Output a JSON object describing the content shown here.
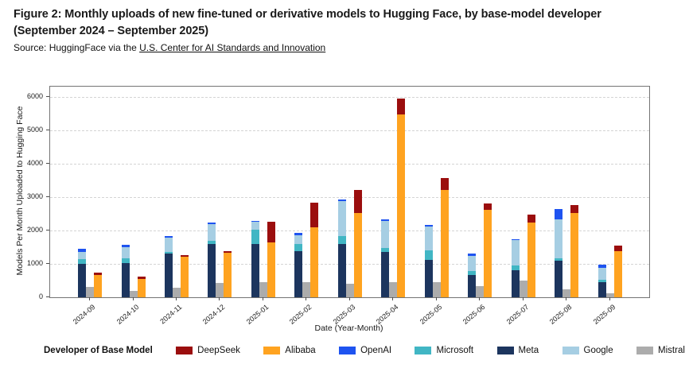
{
  "header": {
    "title_line1": "Figure 2: Monthly uploads of new fine-tuned or derivative models to Hugging Face, by base-model developer",
    "title_line2": "(September 2024 – September 2025)"
  },
  "source": {
    "prefix": "Source: HuggingFace via the ",
    "link_text": "U.S. Center for AI Standards and Innovation"
  },
  "chart_data": {
    "type": "bar",
    "title": "",
    "xlabel": "Date (Year-Month)",
    "ylabel": "Models Per Month Uploaded to Hugging Face",
    "ylim": [
      0,
      6300
    ],
    "yticks": [
      0,
      1000,
      2000,
      3000,
      4000,
      5000,
      6000
    ],
    "grid": "dashed-horizontal",
    "categories": [
      "2024-09",
      "2024-10",
      "2024-11",
      "2024-12",
      "2025-01",
      "2025-02",
      "2025-03",
      "2025-04",
      "2025-05",
      "2025-06",
      "2025-07",
      "2025-08",
      "2025-09"
    ],
    "grouped_stacks": [
      {
        "id": "us-developers-stack",
        "stack_order_bottom_to_top": [
          "Meta",
          "Microsoft",
          "Google",
          "OpenAI"
        ]
      },
      {
        "id": "mistral-bar",
        "stack_order_bottom_to_top": [
          "Mistral"
        ]
      },
      {
        "id": "china-developers-stack",
        "stack_order_bottom_to_top": [
          "Alibaba",
          "DeepSeek"
        ]
      }
    ],
    "series": [
      {
        "name": "Meta",
        "color": "#1C355E",
        "values": [
          1000,
          1030,
          1310,
          1600,
          1600,
          1370,
          1600,
          1360,
          1125,
          665,
          805,
          1100,
          450
        ]
      },
      {
        "name": "Microsoft",
        "color": "#41B6C4",
        "values": [
          130,
          135,
          55,
          80,
          430,
          230,
          240,
          105,
          275,
          120,
          135,
          65,
          80
        ]
      },
      {
        "name": "Google",
        "color": "#A6CEE3",
        "values": [
          220,
          340,
          410,
          500,
          220,
          260,
          1030,
          820,
          725,
          460,
          775,
          1170,
          355
        ]
      },
      {
        "name": "OpenAI",
        "color": "#1E53F0",
        "values": [
          90,
          60,
          60,
          55,
          30,
          60,
          55,
          50,
          50,
          65,
          30,
          295,
          95
        ]
      },
      {
        "name": "Mistral",
        "color": "#ACACAC",
        "values": [
          320,
          200,
          295,
          420,
          450,
          450,
          410,
          460,
          450,
          330,
          490,
          240,
          130
        ]
      },
      {
        "name": "Alibaba",
        "color": "#FFA320",
        "values": [
          670,
          550,
          1205,
          1330,
          1640,
          2100,
          2520,
          5480,
          3200,
          2605,
          2230,
          2525,
          1380
        ]
      },
      {
        "name": "DeepSeek",
        "color": "#9B0E0E",
        "values": [
          60,
          60,
          55,
          45,
          630,
          730,
          700,
          470,
          360,
          195,
          240,
          245,
          155
        ]
      }
    ],
    "legend": {
      "title": "Developer of Base Model",
      "position": "bottom",
      "entries": [
        "DeepSeek",
        "Alibaba",
        "OpenAI",
        "Microsoft",
        "Meta",
        "Google",
        "Mistral"
      ]
    }
  }
}
